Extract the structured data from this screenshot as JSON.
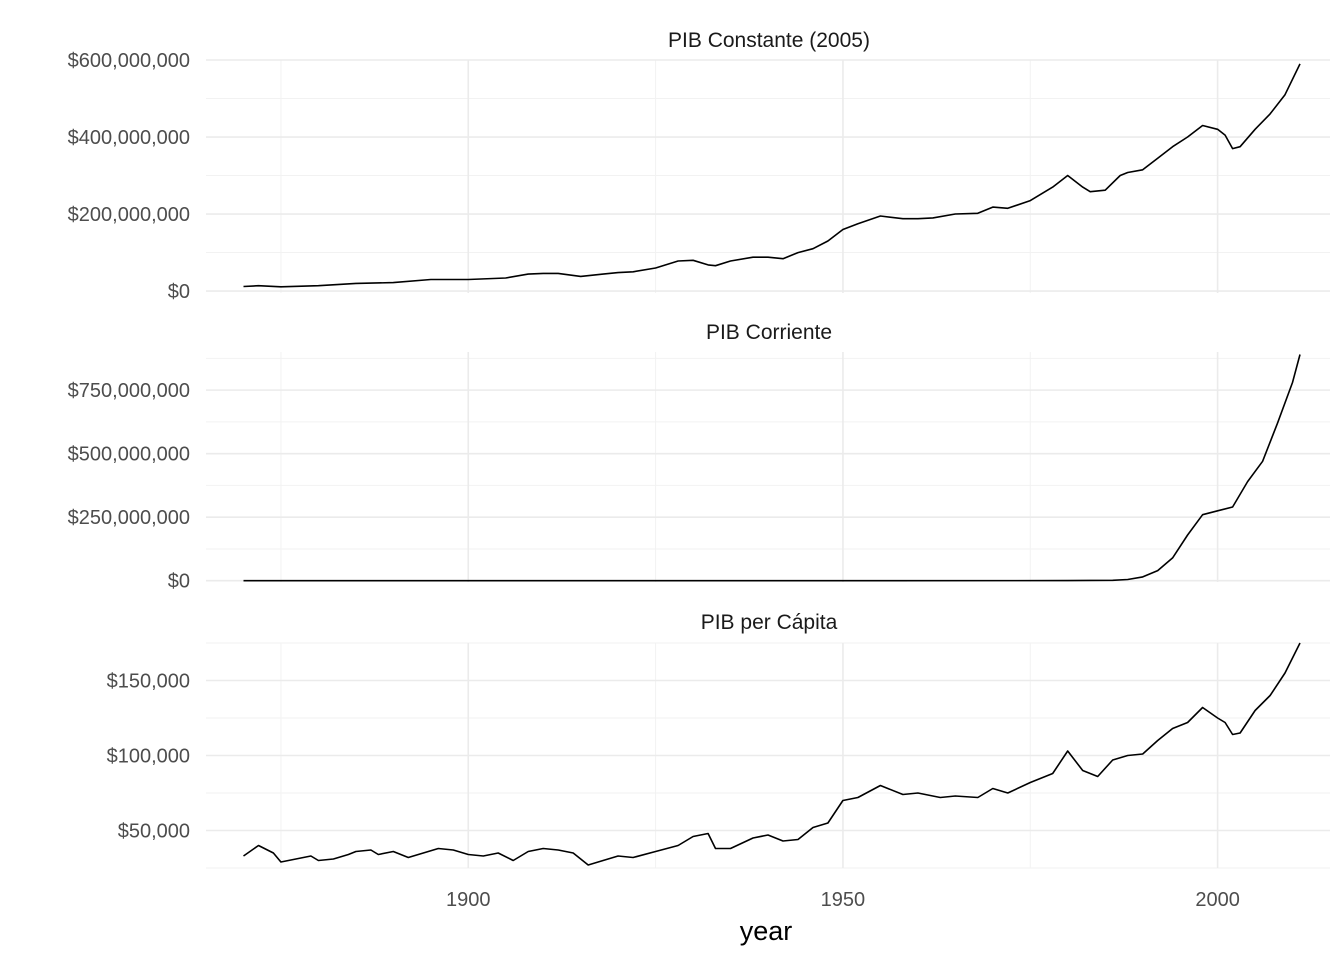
{
  "chart_data": [
    {
      "type": "line",
      "title": "PIB Constante (2005)",
      "xlim": [
        1865,
        2015
      ],
      "ylim": [
        -5000000,
        600000000
      ],
      "y_major_ticks": [
        0,
        200000000,
        400000000,
        600000000
      ],
      "y_tick_labels": [
        "$0",
        "$200,000,000",
        "$400,000,000",
        "$600,000,000"
      ],
      "x": [
        1870,
        1872,
        1875,
        1880,
        1885,
        1890,
        1895,
        1900,
        1905,
        1908,
        1910,
        1912,
        1915,
        1918,
        1920,
        1922,
        1925,
        1928,
        1930,
        1932,
        1933,
        1935,
        1938,
        1940,
        1942,
        1944,
        1946,
        1948,
        1950,
        1952,
        1955,
        1958,
        1960,
        1962,
        1965,
        1968,
        1970,
        1972,
        1975,
        1978,
        1980,
        1982,
        1983,
        1985,
        1987,
        1988,
        1990,
        1992,
        1994,
        1996,
        1998,
        2000,
        2001,
        2002,
        2003,
        2005,
        2007,
        2009,
        2011
      ],
      "y": [
        12000000,
        14000000,
        11000000,
        14000000,
        20000000,
        22000000,
        30000000,
        30000000,
        34000000,
        44000000,
        46000000,
        46000000,
        38000000,
        44000000,
        48000000,
        50000000,
        60000000,
        78000000,
        80000000,
        68000000,
        66000000,
        78000000,
        88000000,
        88000000,
        84000000,
        100000000,
        110000000,
        130000000,
        160000000,
        175000000,
        195000000,
        188000000,
        188000000,
        190000000,
        200000000,
        202000000,
        218000000,
        215000000,
        235000000,
        270000000,
        300000000,
        270000000,
        258000000,
        262000000,
        300000000,
        308000000,
        315000000,
        345000000,
        375000000,
        400000000,
        430000000,
        420000000,
        405000000,
        370000000,
        375000000,
        420000000,
        460000000,
        510000000,
        590000000
      ]
    },
    {
      "type": "line",
      "title": "PIB Corriente",
      "xlim": [
        1865,
        2015
      ],
      "ylim": [
        -5000000,
        900000000
      ],
      "y_major_ticks": [
        0,
        250000000,
        500000000,
        750000000
      ],
      "y_tick_labels": [
        "$0",
        "$250,000,000",
        "$500,000,000",
        "$750,000,000"
      ],
      "x": [
        1870,
        1900,
        1950,
        1980,
        1986,
        1988,
        1990,
        1992,
        1994,
        1996,
        1998,
        2000,
        2002,
        2004,
        2006,
        2008,
        2010,
        2011
      ],
      "y": [
        0,
        0,
        0,
        500000,
        1500000,
        5000000,
        15000000,
        40000000,
        90000000,
        180000000,
        260000000,
        275000000,
        290000000,
        390000000,
        470000000,
        620000000,
        780000000,
        890000000
      ]
    },
    {
      "type": "line",
      "title": "PIB per Cápita",
      "xlim": [
        1865,
        2015
      ],
      "ylim": [
        25000,
        175000
      ],
      "y_major_ticks": [
        50000,
        100000,
        150000
      ],
      "y_tick_labels": [
        "$50,000",
        "$100,000",
        "$150,000"
      ],
      "x": [
        1870,
        1872,
        1874,
        1875,
        1877,
        1879,
        1880,
        1882,
        1884,
        1885,
        1887,
        1888,
        1890,
        1892,
        1894,
        1896,
        1898,
        1900,
        1902,
        1904,
        1906,
        1908,
        1910,
        1912,
        1914,
        1916,
        1918,
        1920,
        1922,
        1925,
        1928,
        1930,
        1932,
        1933,
        1935,
        1938,
        1940,
        1942,
        1944,
        1946,
        1948,
        1950,
        1952,
        1955,
        1958,
        1960,
        1963,
        1965,
        1968,
        1970,
        1972,
        1975,
        1978,
        1980,
        1982,
        1984,
        1986,
        1988,
        1990,
        1992,
        1994,
        1996,
        1998,
        2000,
        2001,
        2002,
        2003,
        2005,
        2007,
        2009,
        2011
      ],
      "y": [
        33000,
        40000,
        35000,
        29000,
        31000,
        33000,
        30000,
        31000,
        34000,
        36000,
        37000,
        34000,
        36000,
        32000,
        35000,
        38000,
        37000,
        34000,
        33000,
        35000,
        30000,
        36000,
        38000,
        37000,
        35000,
        27000,
        30000,
        33000,
        32000,
        36000,
        40000,
        46000,
        48000,
        38000,
        38000,
        45000,
        47000,
        43000,
        44000,
        52000,
        55000,
        70000,
        72000,
        80000,
        74000,
        75000,
        72000,
        73000,
        72000,
        78000,
        75000,
        82000,
        88000,
        103000,
        90000,
        86000,
        97000,
        100000,
        101000,
        110000,
        118000,
        122000,
        132000,
        125000,
        122000,
        114000,
        115000,
        130000,
        140000,
        155000,
        175000
      ]
    }
  ],
  "x_axis": {
    "ticks": [
      1900,
      1950,
      2000
    ],
    "minor_ticks": [
      1875,
      1925,
      1975
    ],
    "label": "year"
  }
}
